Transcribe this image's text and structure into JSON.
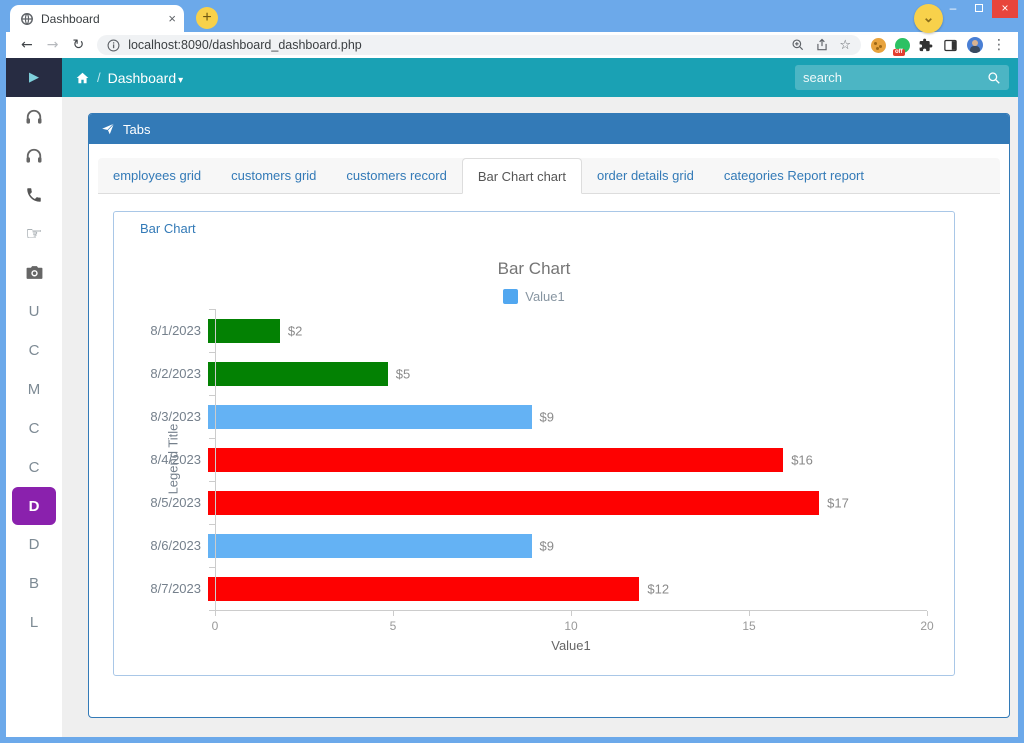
{
  "browser": {
    "tab_title": "Dashboard",
    "url": "localhost:8090/dashboard_dashboard.php",
    "icons": {
      "new_tab": "+",
      "chevron": "v",
      "back": "←",
      "forward": "→",
      "refresh": "↻",
      "star": "☆",
      "menu_dots": "⋮",
      "minimize": "–",
      "close": "×",
      "green_badge": "off"
    }
  },
  "navbar": {
    "toggle_glyph": "▶",
    "breadcrumb_sep": "/",
    "breadcrumb": "Dashboard",
    "caret": "▾",
    "search_placeholder": "search",
    "teal": "#1aa1b4"
  },
  "sidebar": {
    "active_color": "#8a21ad",
    "items": [
      {
        "icon": "headphones-icon"
      },
      {
        "icon": "headphones-icon"
      },
      {
        "icon": "phone-icon"
      },
      {
        "icon": "pointing-hand-icon"
      },
      {
        "icon": "camera-icon"
      },
      {
        "letter": "U"
      },
      {
        "letter": "C"
      },
      {
        "letter": "M"
      },
      {
        "letter": "C"
      },
      {
        "letter": "C"
      },
      {
        "letter": "D",
        "active": true
      },
      {
        "letter": "D"
      },
      {
        "letter": "B"
      },
      {
        "letter": "L"
      }
    ]
  },
  "panel": {
    "title": "Tabs",
    "header_color": "#337ab7"
  },
  "tabs": [
    {
      "label": "employees grid",
      "active": false
    },
    {
      "label": "customers grid",
      "active": false
    },
    {
      "label": "customers record",
      "active": false
    },
    {
      "label": "Bar Chart chart",
      "active": true
    },
    {
      "label": "order details grid",
      "active": false
    },
    {
      "label": "categories Report report",
      "active": false
    }
  ],
  "chart_panel": {
    "label": "Bar Chart"
  },
  "chart_data": {
    "type": "bar",
    "orientation": "horizontal",
    "title": "Bar Chart",
    "legend": [
      {
        "label": "Value1",
        "color": "#51a7f0"
      }
    ],
    "categories": [
      "8/1/2023",
      "8/2/2023",
      "8/3/2023",
      "8/4/2023",
      "8/5/2023",
      "8/6/2023",
      "8/7/2023"
    ],
    "values": [
      2,
      5,
      9,
      16,
      17,
      9,
      12
    ],
    "value_labels": [
      "$2",
      "$5",
      "$9",
      "$16",
      "$17",
      "$9",
      "$12"
    ],
    "bar_colors": [
      "#038103",
      "#038103",
      "#64b2f4",
      "#fe0101",
      "#fe0101",
      "#64b2f4",
      "#fe0101"
    ],
    "xlabel": "Value1",
    "ylabel": "Legend Title",
    "xlim": [
      0,
      20
    ],
    "x_ticks": [
      0,
      5,
      10,
      15,
      20
    ],
    "grid": false,
    "legend_position": "top-center"
  }
}
